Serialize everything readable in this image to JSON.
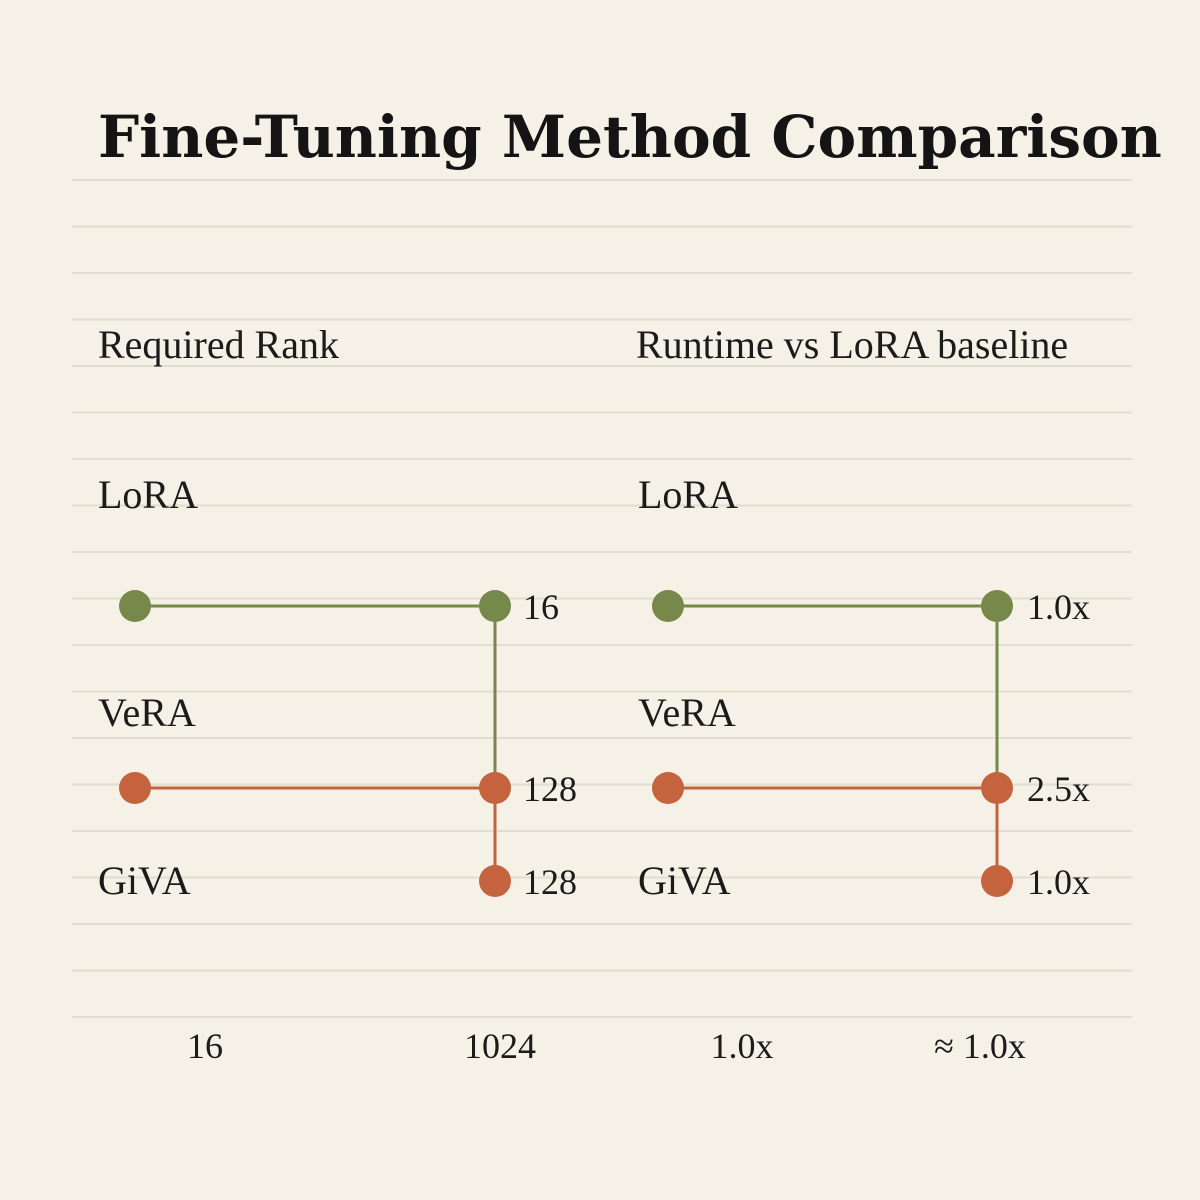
{
  "title": "Fine-Tuning Method Comparison",
  "colors": {
    "background": "#f5f1e6",
    "rule": "#e2ddd0",
    "green": "#76884a",
    "orange": "#c4633e"
  },
  "chart_data": [
    {
      "type": "dumbbell",
      "title": "Required Rank",
      "x_ticks": [
        "16",
        "1024"
      ],
      "methods": [
        "LoRA",
        "VeRA",
        "GiVA"
      ],
      "series": [
        {
          "method": "LoRA",
          "color": "green",
          "connector": "from_previous_none",
          "start": "16",
          "end": "1024",
          "label": "16"
        },
        {
          "method": "VeRA",
          "color": "orange",
          "start": "16",
          "end": "1024",
          "label": "128"
        },
        {
          "method": "GiVA",
          "color": "orange",
          "start": null,
          "end": "1024",
          "label": "128"
        }
      ]
    },
    {
      "type": "dumbbell",
      "title": "Runtime vs LoRA baseline",
      "x_ticks": [
        "1.0x",
        "≈ 1.0x"
      ],
      "methods": [
        "LoRA",
        "VeRA",
        "GiVA"
      ],
      "series": [
        {
          "method": "LoRA",
          "color": "green",
          "start": "1.0x",
          "end": "≈ 1.0x",
          "label": "1.0x"
        },
        {
          "method": "VeRA",
          "color": "orange",
          "start": "1.0x",
          "end": "≈ 1.0x",
          "label": "2.5x"
        },
        {
          "method": "GiVA",
          "color": "orange",
          "start": null,
          "end": "≈ 1.0x",
          "label": "1.0x"
        }
      ]
    }
  ]
}
